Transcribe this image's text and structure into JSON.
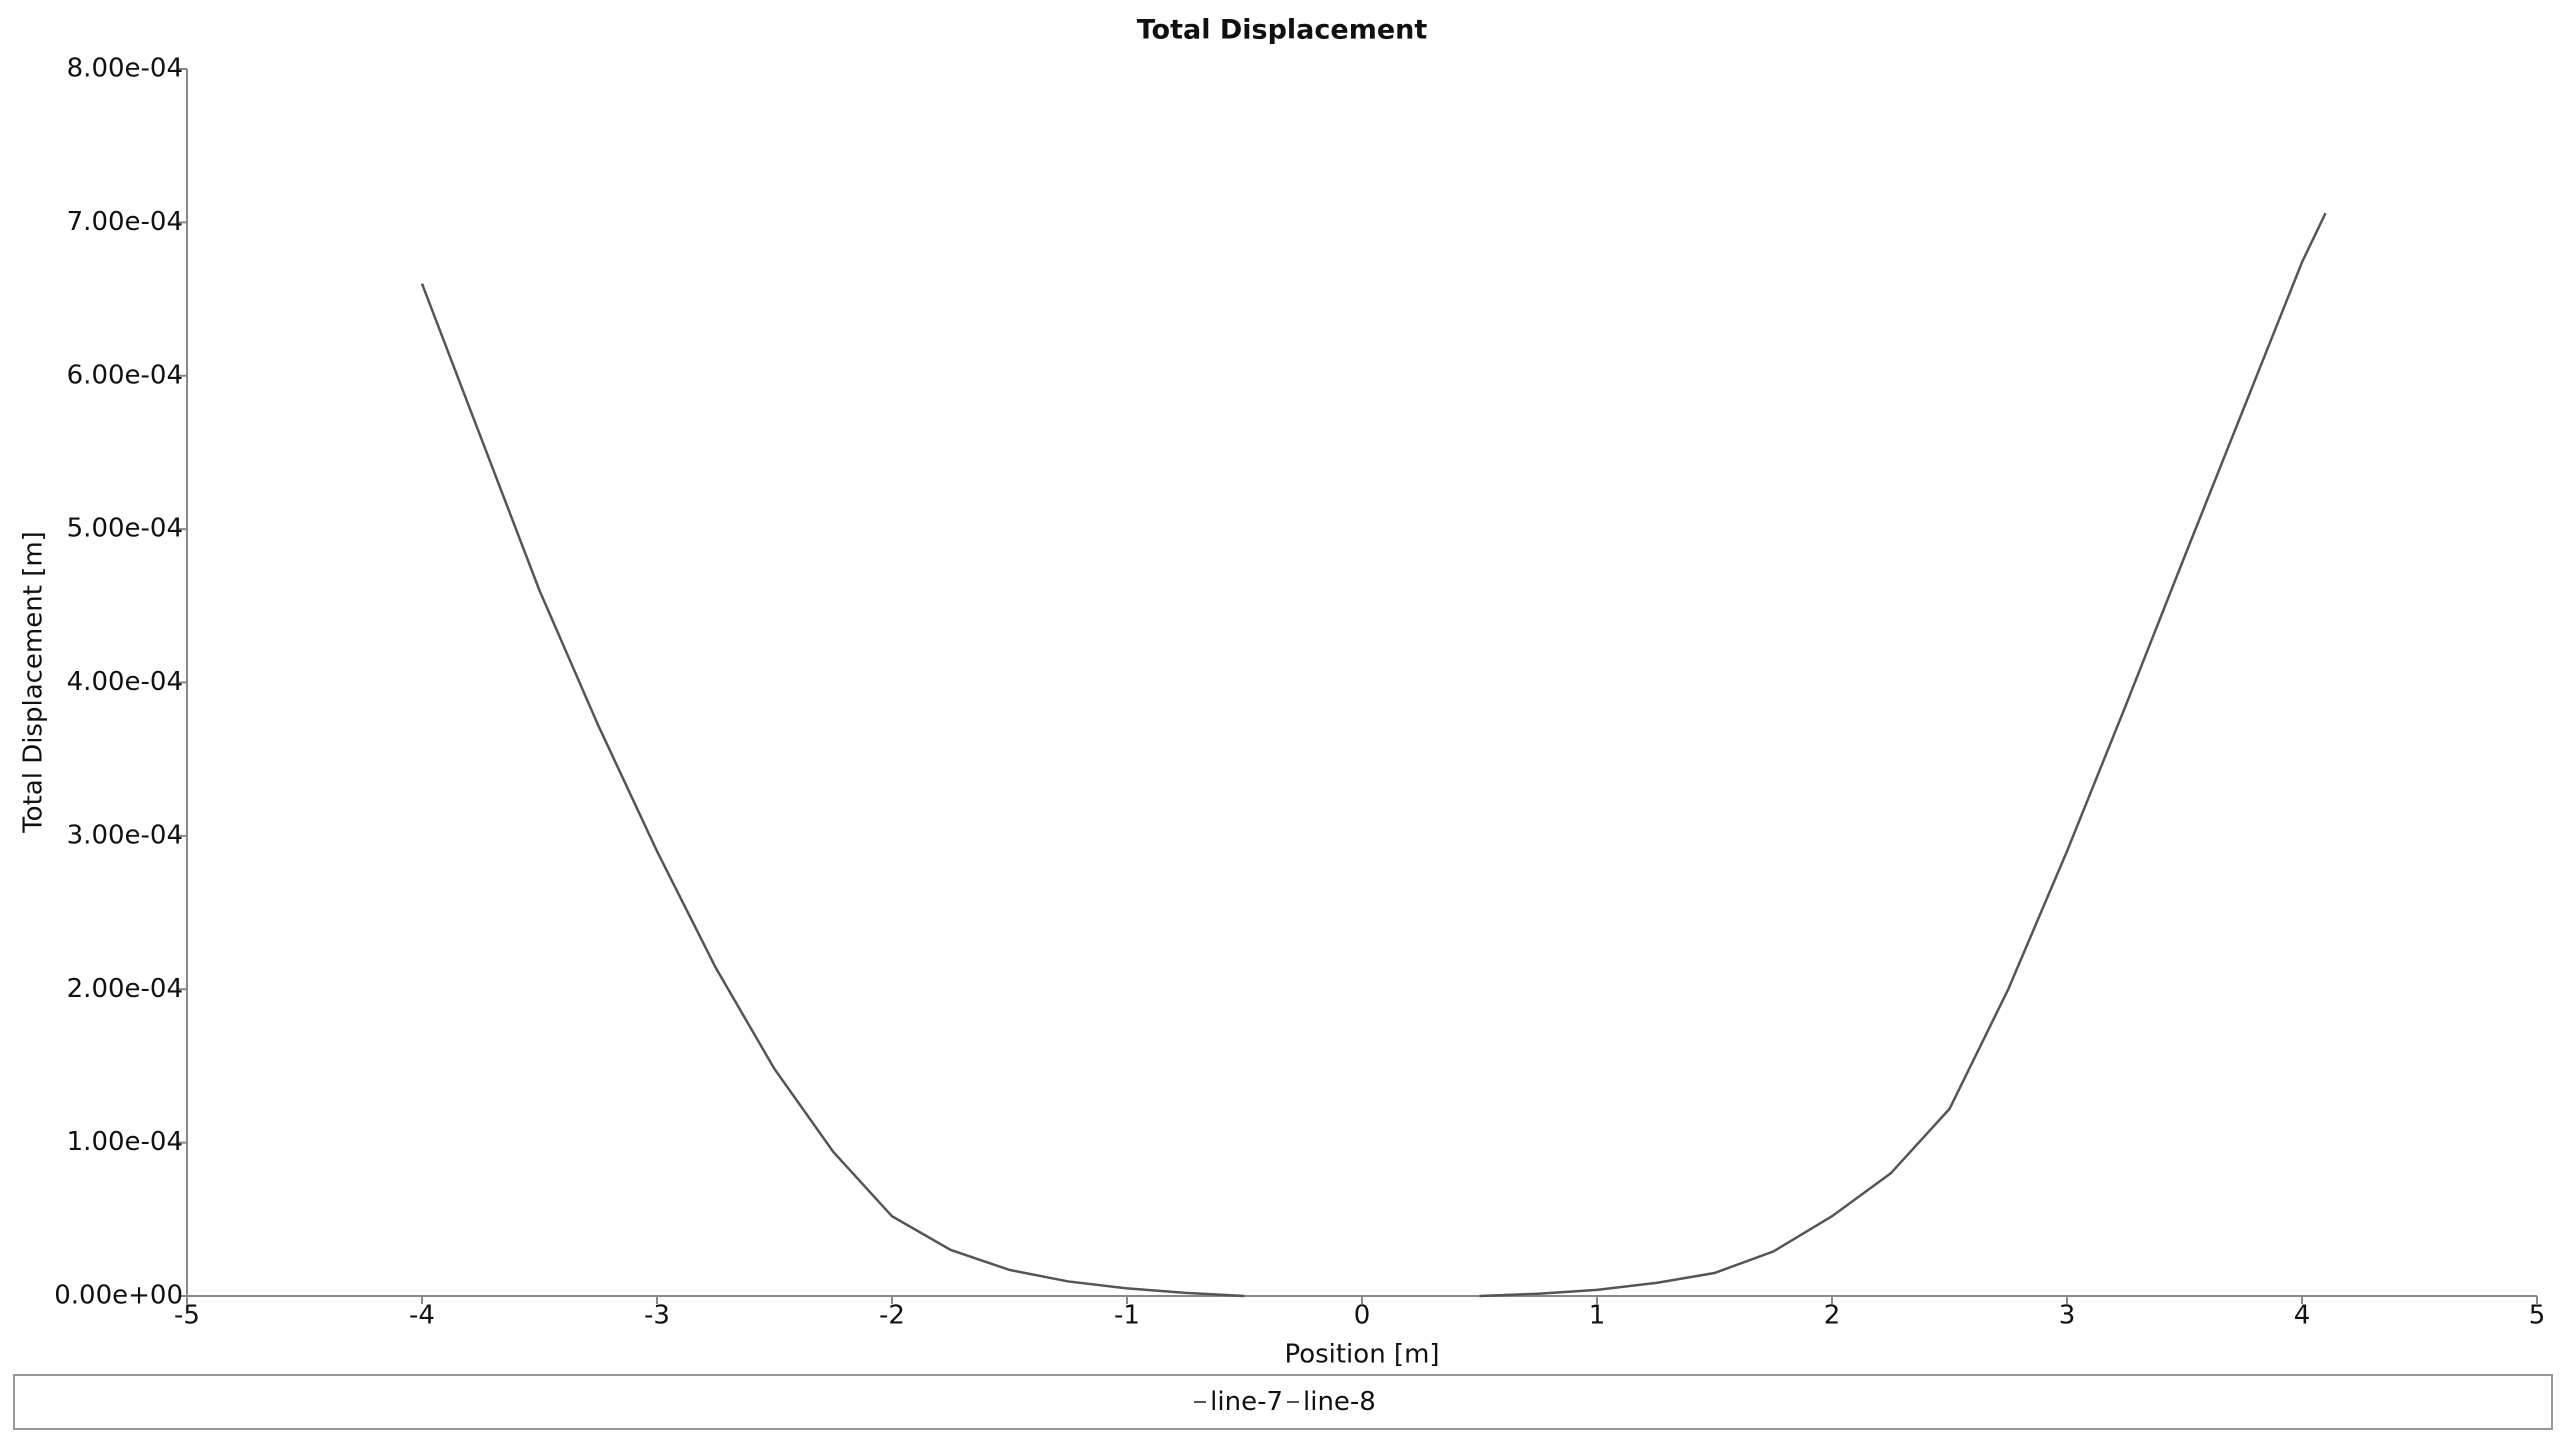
{
  "chart_data": {
    "type": "line",
    "title": "Total Displacement",
    "x_label": "Position [m]",
    "y_label": "Total Displacement [m]",
    "xlim": [
      -5,
      5
    ],
    "xticks": [
      -5,
      -4,
      -3,
      -2,
      -1,
      0,
      1,
      2,
      3,
      4,
      5
    ],
    "ylim": [
      0,
      0.0008
    ],
    "yticks": [
      {
        "value": 0,
        "label": "0.00e+00"
      },
      {
        "value": 0.0001,
        "label": "1.00e-04"
      },
      {
        "value": 0.0002,
        "label": "2.00e-04"
      },
      {
        "value": 0.0003,
        "label": "3.00e-04"
      },
      {
        "value": 0.0004,
        "label": "4.00e-04"
      },
      {
        "value": 0.0005,
        "label": "5.00e-04"
      },
      {
        "value": 0.0006,
        "label": "6.00e-04"
      },
      {
        "value": 0.0007,
        "label": "7.00e-04"
      },
      {
        "value": 0.0008,
        "label": "8.00e-04"
      }
    ],
    "grid": false,
    "legend": "bottom",
    "series": [
      {
        "name": "line-7",
        "color": "#555555",
        "x": [
          -4,
          -3.75,
          -3.5,
          -3.25,
          -3,
          -2.75,
          -2.5,
          -2.25,
          -2,
          -1.75,
          -1.5,
          -1.25,
          -1,
          -0.75,
          -0.5
        ],
        "values": [
          0.00066,
          0.00056,
          0.00046,
          0.000372,
          0.00029,
          0.000214,
          0.000148,
          9.4e-05,
          5.2e-05,
          3e-05,
          1.7e-05,
          9.5e-06,
          5e-06,
          2e-06,
          0
        ]
      },
      {
        "name": "line-8",
        "color": "#555555",
        "x": [
          0.5,
          0.75,
          1,
          1.25,
          1.5,
          1.75,
          2,
          2.25,
          2.5,
          2.75,
          3,
          3.25,
          3.5,
          3.75,
          4,
          4.1
        ],
        "values": [
          0,
          1.5e-06,
          4e-06,
          8.5e-06,
          1.5e-05,
          2.9e-05,
          5.2e-05,
          8e-05,
          0.000122,
          0.0002,
          0.00029,
          0.000385,
          0.000482,
          0.000578,
          0.000674,
          0.000706
        ]
      }
    ]
  }
}
